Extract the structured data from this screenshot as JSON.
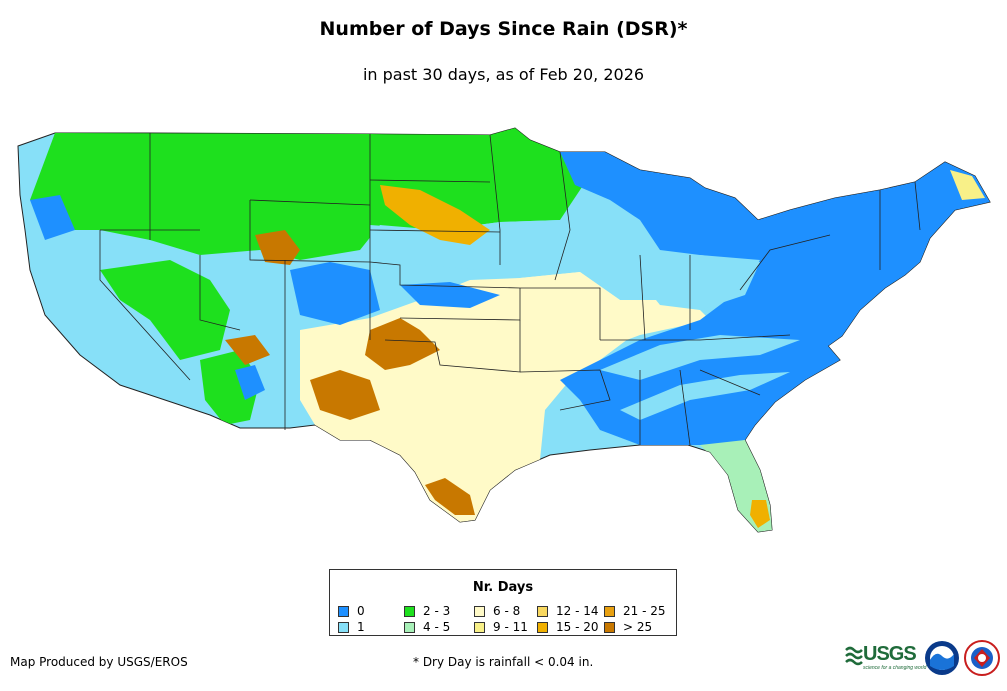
{
  "title": "Number of Days Since Rain (DSR)*",
  "subtitle": "in past 30 days, as of Feb 20, 2026",
  "legend": {
    "title": "Nr. Days",
    "items": [
      {
        "label": "0",
        "color": "#1e90ff"
      },
      {
        "label": "1",
        "color": "#87e0f8"
      },
      {
        "label": "2 - 3",
        "color": "#1ee01e"
      },
      {
        "label": "4 - 5",
        "color": "#a8f0b8"
      },
      {
        "label": "6 - 8",
        "color": "#fffac8"
      },
      {
        "label": "9 - 11",
        "color": "#f8f088"
      },
      {
        "label": "12 - 14",
        "color": "#f8d860"
      },
      {
        "label": "15 - 20",
        "color": "#f0b000"
      },
      {
        "label": "21 - 25",
        "color": "#e8a010"
      },
      {
        "label": "> 25",
        "color": "#c87800"
      }
    ]
  },
  "footer": {
    "credit": "Map Produced by USGS/EROS",
    "note": "* Dry Day is rainfall < 0.04 in."
  },
  "logos": {
    "usgs_text": "USGS",
    "usgs_tagline": "science for a changing world"
  },
  "map": {
    "base_color": "#87e0f8",
    "region_names": [
      "pacific-northwest",
      "northern-rockies",
      "california-great-basin",
      "northern-plains",
      "southern-plains",
      "texas",
      "midwest",
      "southeast",
      "northeast",
      "florida"
    ]
  }
}
